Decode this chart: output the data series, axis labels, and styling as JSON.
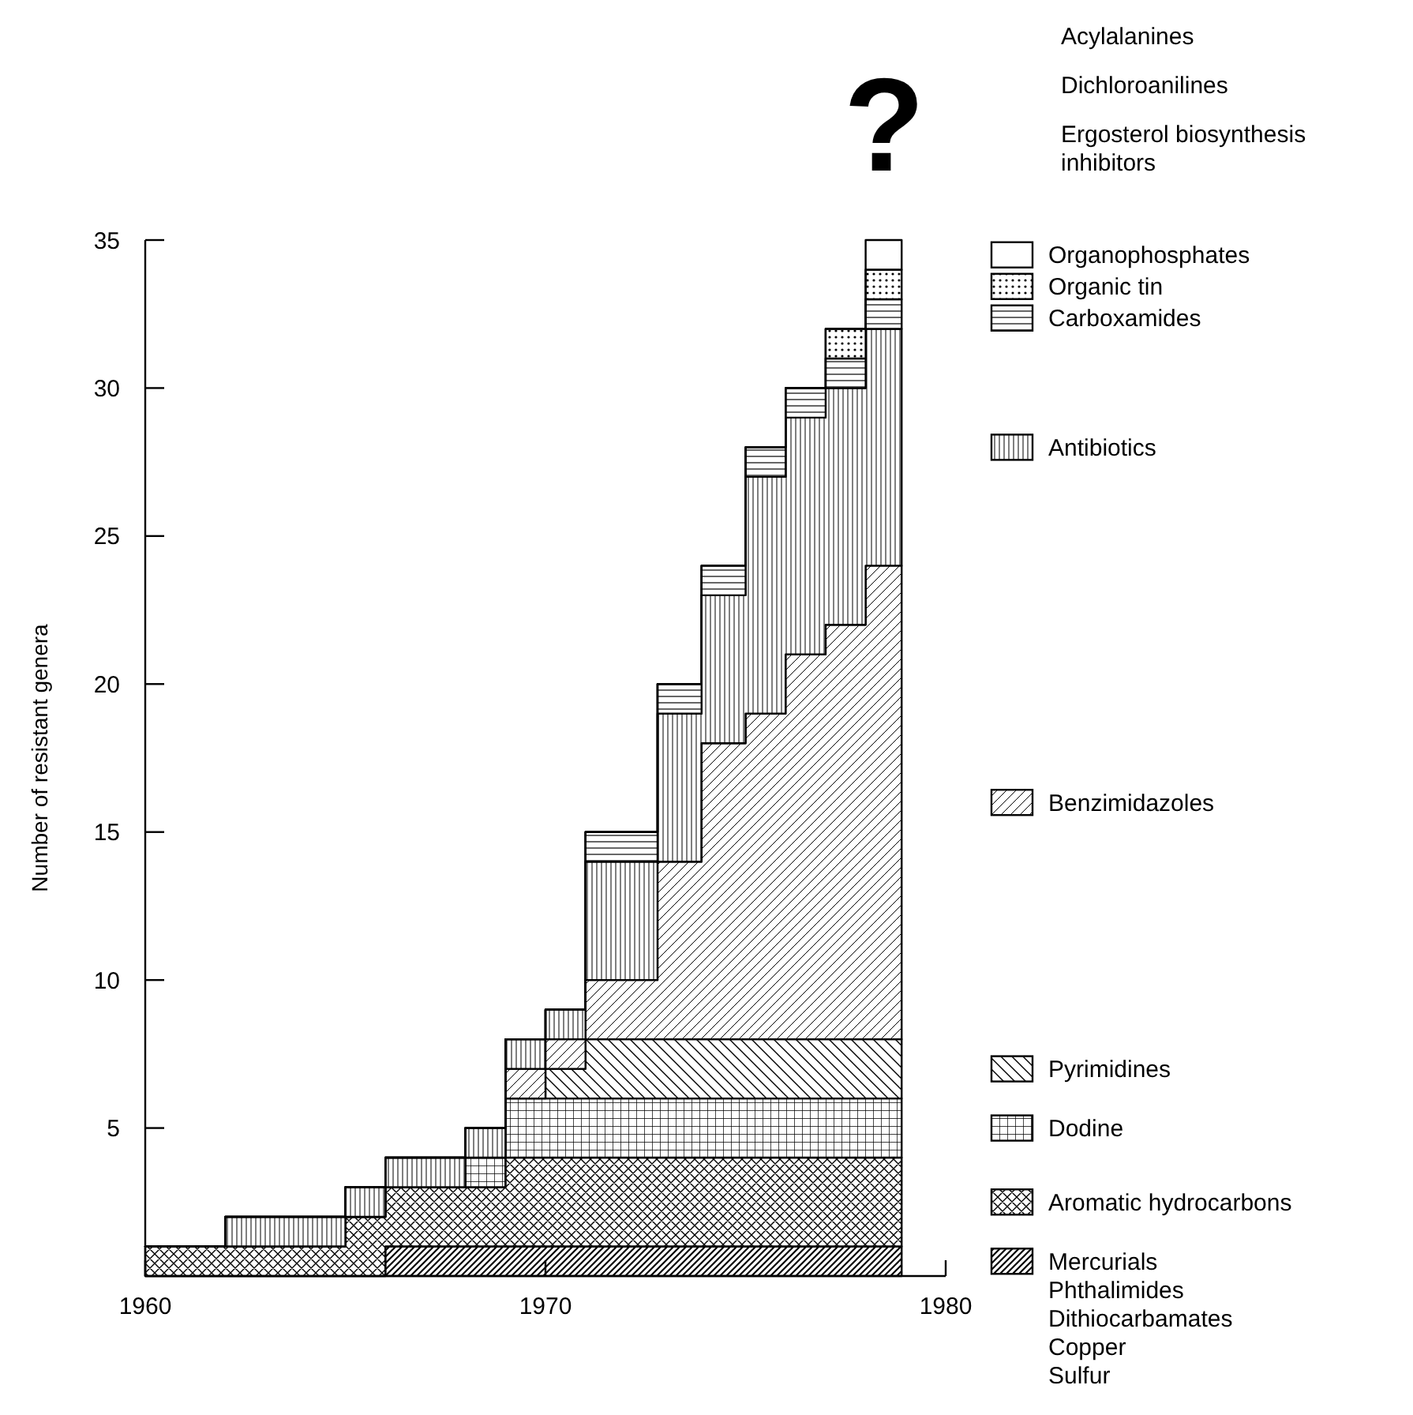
{
  "chart_data": {
    "type": "area",
    "stacked": true,
    "ylabel": "Number of resistant genera",
    "x": [
      1960,
      1962,
      1962,
      1965,
      1965,
      1966,
      1966,
      1968,
      1968,
      1969,
      1969,
      1970,
      1970,
      1971,
      1971,
      1972.8,
      1972.8,
      1973.9,
      1973.9,
      1975,
      1975,
      1976,
      1976,
      1977,
      1977,
      1978,
      1978,
      1978.9
    ],
    "xlim": [
      1960,
      1980
    ],
    "xticks": [
      1960,
      1970,
      1980
    ],
    "ylim": [
      0,
      35
    ],
    "yticks": [
      5,
      10,
      15,
      20,
      25,
      30,
      35
    ],
    "grid": false,
    "legend": "right",
    "annotations": [
      "?",
      "Acylalanines",
      "Dichloroanilines",
      "Ergosterol biosynthesis inhibitors"
    ],
    "series": [
      {
        "name": "Mercurials\nPhthalimides\nDithiocarbamates\nCopper\nSulfur",
        "color": "#000000",
        "values": [
          0,
          0,
          0,
          0,
          0,
          0,
          1,
          1,
          1,
          1,
          1,
          1,
          1,
          1,
          1,
          1,
          1,
          1,
          1,
          1,
          1,
          1,
          1,
          1,
          1,
          1,
          1,
          1
        ]
      },
      {
        "name": "Aromatic hydrocarbons",
        "color": "#000000",
        "values": [
          1,
          1,
          1,
          1,
          2,
          2,
          2,
          2,
          2,
          2,
          3,
          3,
          3,
          3,
          3,
          3,
          3,
          3,
          3,
          3,
          3,
          3,
          3,
          3,
          3,
          3,
          3,
          3
        ]
      },
      {
        "name": "Dodine",
        "color": "#000000",
        "values": [
          0,
          0,
          0,
          0,
          0,
          0,
          0,
          0,
          1,
          1,
          2,
          2,
          2,
          2,
          2,
          2,
          2,
          2,
          2,
          2,
          2,
          2,
          2,
          2,
          2,
          2,
          2,
          2
        ]
      },
      {
        "name": "Pyrimidines",
        "color": "#000000",
        "values": [
          0,
          0,
          0,
          0,
          0,
          0,
          0,
          0,
          0,
          0,
          0,
          0,
          1,
          1,
          2,
          2,
          2,
          2,
          2,
          2,
          2,
          2,
          2,
          2,
          2,
          2,
          2,
          2
        ]
      },
      {
        "name": "Benzimidazoles",
        "color": "#000000",
        "values": [
          0,
          0,
          0,
          0,
          0,
          0,
          0,
          0,
          0,
          0,
          1,
          1,
          1,
          1,
          2,
          2,
          6,
          6,
          10,
          10,
          11,
          11,
          13,
          13,
          14,
          14,
          16,
          16
        ]
      },
      {
        "name": "Antibiotics",
        "color": "#000000",
        "values": [
          0,
          0,
          1,
          1,
          1,
          1,
          1,
          1,
          1,
          1,
          1,
          1,
          1,
          1,
          4,
          4,
          5,
          5,
          5,
          5,
          8,
          8,
          8,
          8,
          8,
          8,
          8,
          8
        ]
      },
      {
        "name": "Carboxamides",
        "color": "#000000",
        "values": [
          0,
          0,
          0,
          0,
          0,
          0,
          0,
          0,
          0,
          0,
          0,
          0,
          0,
          0,
          1,
          1,
          1,
          1,
          1,
          1,
          1,
          1,
          1,
          1,
          1,
          1,
          1,
          1
        ]
      },
      {
        "name": "Organic tin",
        "color": "#000000",
        "values": [
          0,
          0,
          0,
          0,
          0,
          0,
          0,
          0,
          0,
          0,
          0,
          0,
          0,
          0,
          0,
          0,
          0,
          0,
          0,
          0,
          0,
          0,
          0,
          0,
          1,
          1,
          1,
          1
        ]
      },
      {
        "name": "Organophosphates",
        "color": "#000000",
        "values": [
          0,
          0,
          0,
          0,
          0,
          0,
          0,
          0,
          0,
          0,
          0,
          0,
          0,
          0,
          0,
          0,
          0,
          0,
          0,
          0,
          0,
          0,
          0,
          0,
          0,
          0,
          1,
          1
        ]
      }
    ]
  }
}
